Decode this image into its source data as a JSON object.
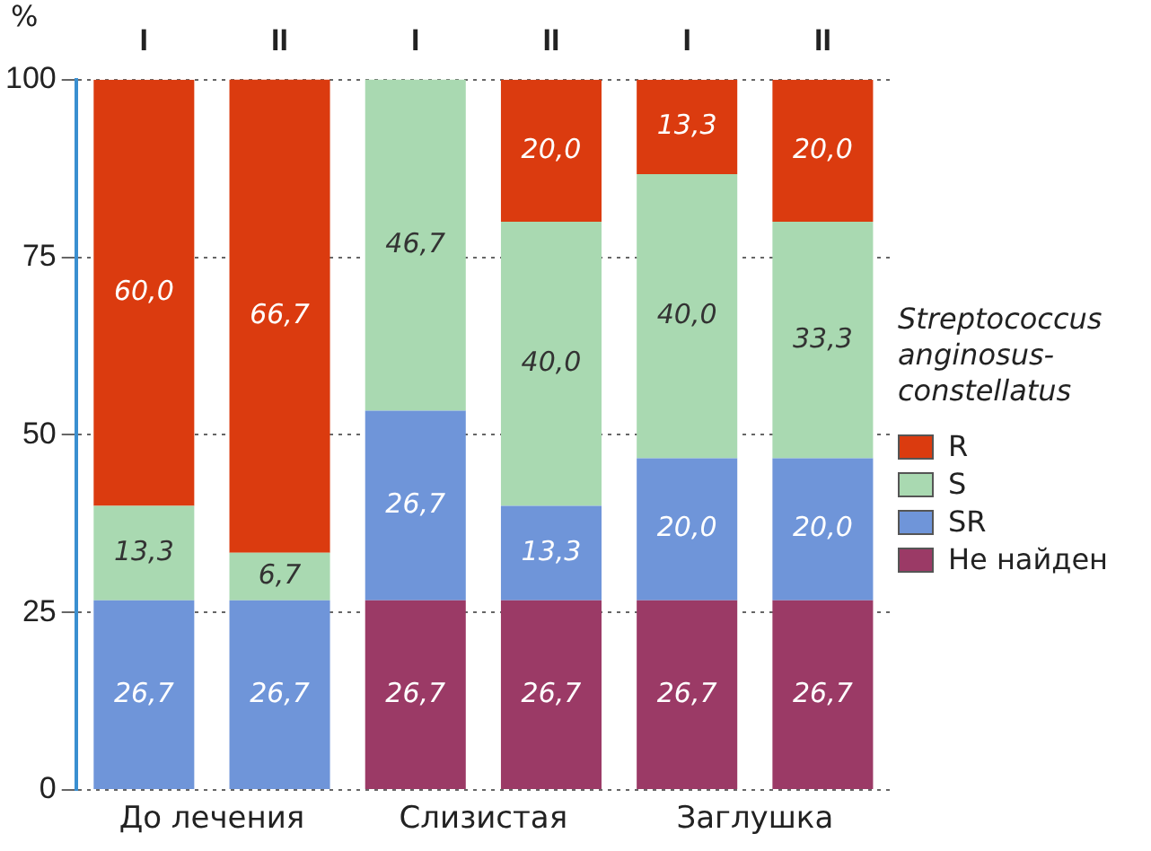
{
  "chart_data": {
    "type": "bar",
    "stacked": true,
    "ylabel": "%",
    "legend_title": "Streptococcus anginosus-constellatus",
    "legend": "right",
    "grid": "y",
    "categories": [
      "I",
      "II",
      "I",
      "II",
      "I",
      "II"
    ],
    "annotations": [
      "До лечения",
      "Слизистая",
      "Заглушка"
    ],
    "ylim": [
      0,
      100
    ],
    "yticks": [
      0,
      25,
      50,
      75,
      100
    ],
    "series": [
      {
        "name": "Не найден",
        "color": "#9b3a66",
        "values": [
          0,
          0,
          26.7,
          26.7,
          26.7,
          26.7
        ],
        "value_labels": [
          null,
          null,
          "26,7",
          "26,7",
          "26,7",
          "26,7"
        ]
      },
      {
        "name": "SR",
        "color": "#6f95d9",
        "values": [
          26.7,
          26.7,
          26.7,
          13.3,
          20.0,
          20.0
        ],
        "value_labels": [
          "26,7",
          "26,7",
          "26,7",
          "13,3",
          "20,0",
          "20,0"
        ]
      },
      {
        "name": "S",
        "color": "#a9d9b1",
        "values": [
          13.3,
          6.7,
          46.7,
          40.0,
          40.0,
          33.3
        ],
        "value_labels": [
          "13,3",
          "6,7",
          "46,7",
          "40,0",
          "40,0",
          "33,3"
        ]
      },
      {
        "name": "R",
        "color": "#db3b0f",
        "values": [
          60.0,
          66.7,
          0,
          20.0,
          13.3,
          20.0
        ],
        "value_labels": [
          "60,0",
          "66,7",
          null,
          "20,0",
          "13,3",
          "20,0"
        ]
      }
    ]
  }
}
